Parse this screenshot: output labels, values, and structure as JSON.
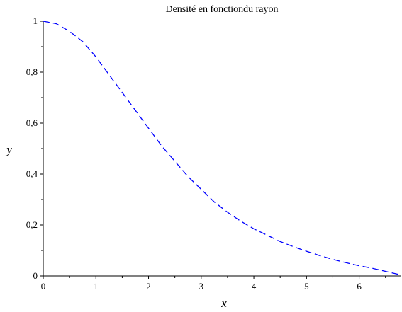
{
  "chart_data": {
    "type": "line",
    "title": "Densité en fonctiondu rayon",
    "xlabel": "x",
    "ylabel": "y",
    "xlim": [
      0,
      6.8
    ],
    "ylim": [
      0,
      1
    ],
    "x_ticks": [
      0,
      1,
      2,
      3,
      4,
      5,
      6
    ],
    "x_tick_labels": [
      "0",
      "1",
      "2",
      "3",
      "4",
      "5",
      "6"
    ],
    "y_ticks": [
      0,
      0.2,
      0.4,
      0.6,
      0.8,
      1
    ],
    "y_tick_labels": [
      "0",
      "0,2",
      "0,4",
      "0,6",
      "0,8",
      "1"
    ],
    "grid": false,
    "series": [
      {
        "color": "#0000ff",
        "line_style": "dashed",
        "x": [
          0,
          0.25,
          0.5,
          0.75,
          1,
          1.25,
          1.5,
          1.75,
          2,
          2.25,
          2.5,
          2.75,
          3,
          3.25,
          3.5,
          3.75,
          4,
          4.25,
          4.5,
          4.75,
          5,
          5.25,
          5.5,
          5.75,
          6,
          6.25,
          6.5,
          6.75,
          6.8
        ],
        "y": [
          1,
          0.99,
          0.96,
          0.92,
          0.86,
          0.79,
          0.72,
          0.65,
          0.58,
          0.51,
          0.45,
          0.39,
          0.34,
          0.29,
          0.25,
          0.215,
          0.185,
          0.16,
          0.135,
          0.115,
          0.097,
          0.08,
          0.065,
          0.052,
          0.04,
          0.03,
          0.018,
          0.006,
          0.003
        ]
      }
    ]
  }
}
